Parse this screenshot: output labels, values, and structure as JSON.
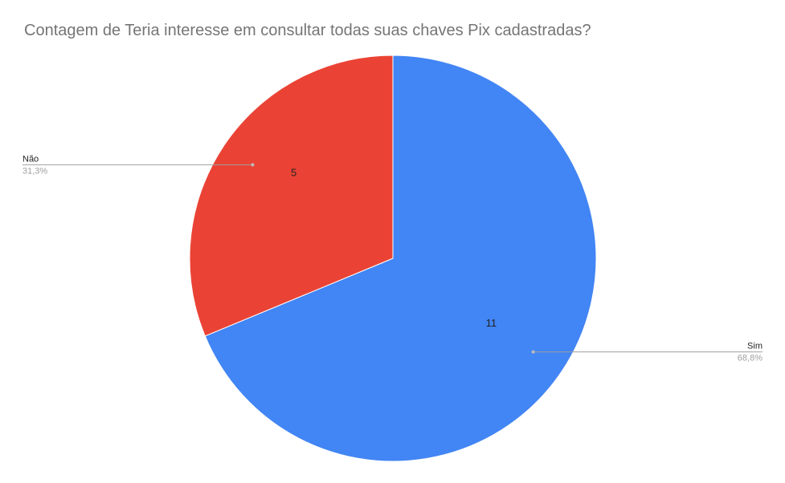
{
  "chart_data": {
    "type": "pie",
    "title": "Contagem de Teria interesse em consultar todas suas chaves Pix cadastradas?",
    "slices": [
      {
        "label": "Sim",
        "value": 11,
        "percent_label": "68,8%",
        "color": "#4285f4"
      },
      {
        "label": "Não",
        "value": 5,
        "percent_label": "31,3%",
        "color": "#ea4335"
      }
    ]
  }
}
